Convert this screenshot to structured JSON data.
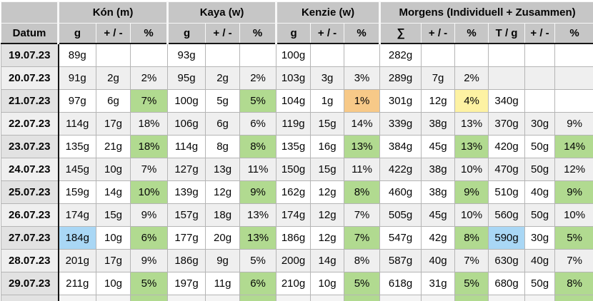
{
  "colors": {
    "header_bg": "#c6c6c6",
    "date_column_bg": "#e2e2e2",
    "row_bg": "#ffffff",
    "row_alt_bg": "#efefef",
    "fill_green": "#b1da90",
    "fill_yellow": "#fdf2a3",
    "fill_orange": "#f7c988",
    "fill_blue": "#a9d7f5",
    "grid_border": "#b5b5b5",
    "strong_border": "#161616"
  },
  "table": {
    "group_headers": [
      {
        "label": "",
        "span": 1
      },
      {
        "label": "Kón (m)",
        "span": 3
      },
      {
        "label": "Kaya (w)",
        "span": 3
      },
      {
        "label": "Kenzie (w)",
        "span": 3
      },
      {
        "label": "Morgens (Individuell + Zusammen)",
        "span": 6
      }
    ],
    "column_headers": [
      "Datum",
      "g",
      "+ / -",
      "%",
      "g",
      "+ / -",
      "%",
      "g",
      "+ / -",
      "%",
      "∑",
      "+ / -",
      "%",
      "T / g",
      "+ / -",
      "%"
    ],
    "rows": [
      {
        "date": "19.07.23",
        "cells": [
          [
            "89g",
            ""
          ],
          [
            "",
            ""
          ],
          [
            "",
            ""
          ],
          [
            "93g",
            ""
          ],
          [
            "",
            ""
          ],
          [
            "",
            ""
          ],
          [
            "100g",
            ""
          ],
          [
            "",
            ""
          ],
          [
            "",
            ""
          ],
          [
            "282g",
            ""
          ],
          [
            "",
            ""
          ],
          [
            "",
            ""
          ],
          [
            "",
            ""
          ],
          [
            "",
            ""
          ],
          [
            "",
            ""
          ]
        ]
      },
      {
        "date": "20.07.23",
        "cells": [
          [
            "91g",
            ""
          ],
          [
            "2g",
            ""
          ],
          [
            "2%",
            "yellow"
          ],
          [
            "95g",
            ""
          ],
          [
            "2g",
            ""
          ],
          [
            "2%",
            "yellow"
          ],
          [
            "103g",
            ""
          ],
          [
            "3g",
            ""
          ],
          [
            "3%",
            "yellow"
          ],
          [
            "289g",
            ""
          ],
          [
            "7g",
            ""
          ],
          [
            "2%",
            "yellow"
          ],
          [
            "",
            ""
          ],
          [
            "",
            ""
          ],
          [
            "",
            ""
          ]
        ]
      },
      {
        "date": "21.07.23",
        "cells": [
          [
            "97g",
            ""
          ],
          [
            "6g",
            ""
          ],
          [
            "7%",
            "green"
          ],
          [
            "100g",
            ""
          ],
          [
            "5g",
            ""
          ],
          [
            "5%",
            "green"
          ],
          [
            "104g",
            ""
          ],
          [
            "1g",
            ""
          ],
          [
            "1%",
            "orange"
          ],
          [
            "301g",
            ""
          ],
          [
            "12g",
            ""
          ],
          [
            "4%",
            "yellow"
          ],
          [
            "340g",
            ""
          ],
          [
            "",
            ""
          ],
          [
            "",
            ""
          ]
        ]
      },
      {
        "date": "22.07.23",
        "cells": [
          [
            "114g",
            ""
          ],
          [
            "17g",
            ""
          ],
          [
            "18%",
            "green"
          ],
          [
            "106g",
            ""
          ],
          [
            "6g",
            ""
          ],
          [
            "6%",
            "green"
          ],
          [
            "119g",
            ""
          ],
          [
            "15g",
            ""
          ],
          [
            "14%",
            "green"
          ],
          [
            "339g",
            ""
          ],
          [
            "38g",
            ""
          ],
          [
            "13%",
            "green"
          ],
          [
            "370g",
            ""
          ],
          [
            "30g",
            ""
          ],
          [
            "9%",
            "green"
          ]
        ]
      },
      {
        "date": "23.07.23",
        "cells": [
          [
            "135g",
            ""
          ],
          [
            "21g",
            ""
          ],
          [
            "18%",
            "green"
          ],
          [
            "114g",
            ""
          ],
          [
            "8g",
            ""
          ],
          [
            "8%",
            "green"
          ],
          [
            "135g",
            ""
          ],
          [
            "16g",
            ""
          ],
          [
            "13%",
            "green"
          ],
          [
            "384g",
            ""
          ],
          [
            "45g",
            ""
          ],
          [
            "13%",
            "green"
          ],
          [
            "420g",
            ""
          ],
          [
            "50g",
            ""
          ],
          [
            "14%",
            "green"
          ]
        ]
      },
      {
        "date": "24.07.23",
        "cells": [
          [
            "145g",
            ""
          ],
          [
            "10g",
            ""
          ],
          [
            "7%",
            "green"
          ],
          [
            "127g",
            ""
          ],
          [
            "13g",
            ""
          ],
          [
            "11%",
            "green"
          ],
          [
            "150g",
            ""
          ],
          [
            "15g",
            ""
          ],
          [
            "11%",
            "green"
          ],
          [
            "422g",
            ""
          ],
          [
            "38g",
            ""
          ],
          [
            "10%",
            "green"
          ],
          [
            "470g",
            ""
          ],
          [
            "50g",
            ""
          ],
          [
            "12%",
            "green"
          ]
        ]
      },
      {
        "date": "25.07.23",
        "cells": [
          [
            "159g",
            ""
          ],
          [
            "14g",
            ""
          ],
          [
            "10%",
            "green"
          ],
          [
            "139g",
            ""
          ],
          [
            "12g",
            ""
          ],
          [
            "9%",
            "green"
          ],
          [
            "162g",
            ""
          ],
          [
            "12g",
            ""
          ],
          [
            "8%",
            "green"
          ],
          [
            "460g",
            ""
          ],
          [
            "38g",
            ""
          ],
          [
            "9%",
            "green"
          ],
          [
            "510g",
            ""
          ],
          [
            "40g",
            ""
          ],
          [
            "9%",
            "green"
          ]
        ]
      },
      {
        "date": "26.07.23",
        "cells": [
          [
            "174g",
            ""
          ],
          [
            "15g",
            ""
          ],
          [
            "9%",
            "green"
          ],
          [
            "157g",
            ""
          ],
          [
            "18g",
            ""
          ],
          [
            "13%",
            "green"
          ],
          [
            "174g",
            ""
          ],
          [
            "12g",
            ""
          ],
          [
            "7%",
            "green"
          ],
          [
            "505g",
            ""
          ],
          [
            "45g",
            ""
          ],
          [
            "10%",
            "green"
          ],
          [
            "560g",
            ""
          ],
          [
            "50g",
            ""
          ],
          [
            "10%",
            "green"
          ]
        ]
      },
      {
        "date": "27.07.23",
        "cells": [
          [
            "184g",
            "blue"
          ],
          [
            "10g",
            ""
          ],
          [
            "6%",
            "green"
          ],
          [
            "177g",
            ""
          ],
          [
            "20g",
            ""
          ],
          [
            "13%",
            "green"
          ],
          [
            "186g",
            ""
          ],
          [
            "12g",
            ""
          ],
          [
            "7%",
            "green"
          ],
          [
            "547g",
            ""
          ],
          [
            "42g",
            ""
          ],
          [
            "8%",
            "green"
          ],
          [
            "590g",
            "blue"
          ],
          [
            "30g",
            ""
          ],
          [
            "5%",
            "green"
          ]
        ]
      },
      {
        "date": "28.07.23",
        "cells": [
          [
            "201g",
            ""
          ],
          [
            "17g",
            ""
          ],
          [
            "9%",
            "green"
          ],
          [
            "186g",
            "blue"
          ],
          [
            "9g",
            ""
          ],
          [
            "5%",
            "green"
          ],
          [
            "200g",
            "blue"
          ],
          [
            "14g",
            ""
          ],
          [
            "8%",
            "green"
          ],
          [
            "587g",
            "blue"
          ],
          [
            "40g",
            ""
          ],
          [
            "7%",
            "green"
          ],
          [
            "630g",
            ""
          ],
          [
            "40g",
            ""
          ],
          [
            "7%",
            "green"
          ]
        ]
      },
      {
        "date": "29.07.23",
        "cells": [
          [
            "211g",
            ""
          ],
          [
            "10g",
            ""
          ],
          [
            "5%",
            "green"
          ],
          [
            "197g",
            ""
          ],
          [
            "11g",
            ""
          ],
          [
            "6%",
            "green"
          ],
          [
            "210g",
            ""
          ],
          [
            "10g",
            ""
          ],
          [
            "5%",
            "green"
          ],
          [
            "618g",
            ""
          ],
          [
            "31g",
            ""
          ],
          [
            "5%",
            "green"
          ],
          [
            "680g",
            ""
          ],
          [
            "50g",
            ""
          ],
          [
            "8%",
            "green"
          ]
        ]
      }
    ],
    "partial_next_row": {
      "visible": true,
      "green_cell_indices": [
        2,
        5,
        8,
        11,
        14
      ]
    }
  }
}
